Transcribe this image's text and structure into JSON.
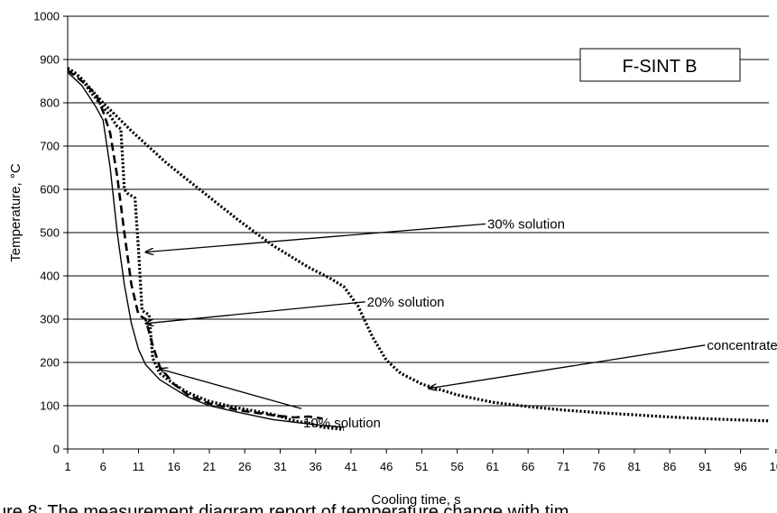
{
  "chart_data": {
    "type": "line",
    "title": "",
    "badge": "F-SINT B",
    "xlabel": "Cooling time, s",
    "ylabel": "Temperature, °C",
    "xlim": [
      1,
      100
    ],
    "ylim": [
      0,
      1000
    ],
    "x_ticks": [
      "1",
      "6",
      "11",
      "16",
      "21",
      "26",
      "31",
      "36",
      "41",
      "46",
      "51",
      "56",
      "61",
      "66",
      "71",
      "76",
      "81",
      "86",
      "91",
      "96",
      "10"
    ],
    "y_ticks": [
      "0",
      "100",
      "200",
      "300",
      "400",
      "500",
      "600",
      "700",
      "800",
      "900",
      "1000"
    ],
    "grid": "horizontal",
    "series": [
      {
        "name": "10% solution",
        "style": "solid",
        "points": [
          [
            1,
            870
          ],
          [
            3,
            840
          ],
          [
            5,
            790
          ],
          [
            6,
            760
          ],
          [
            7,
            650
          ],
          [
            8,
            500
          ],
          [
            9,
            380
          ],
          [
            10,
            290
          ],
          [
            11,
            230
          ],
          [
            12,
            195
          ],
          [
            14,
            160
          ],
          [
            16,
            140
          ],
          [
            18,
            120
          ],
          [
            21,
            100
          ],
          [
            25,
            85
          ],
          [
            30,
            68
          ],
          [
            35,
            58
          ],
          [
            40,
            50
          ]
        ]
      },
      {
        "name": "20% solution",
        "style": "dashed",
        "points": [
          [
            1,
            875
          ],
          [
            3,
            850
          ],
          [
            5,
            820
          ],
          [
            6,
            780
          ],
          [
            7,
            730
          ],
          [
            8,
            630
          ],
          [
            9,
            500
          ],
          [
            10,
            380
          ],
          [
            11,
            310
          ],
          [
            12,
            300
          ],
          [
            13,
            240
          ],
          [
            14,
            190
          ],
          [
            16,
            150
          ],
          [
            18,
            125
          ],
          [
            21,
            105
          ],
          [
            25,
            90
          ],
          [
            30,
            78
          ],
          [
            33,
            73
          ],
          [
            35,
            75
          ],
          [
            36,
            73
          ],
          [
            37,
            70
          ]
        ]
      },
      {
        "name": "30% solution",
        "style": "dotted",
        "points": [
          [
            1,
            880
          ],
          [
            2,
            870
          ],
          [
            3,
            855
          ],
          [
            4,
            830
          ],
          [
            5,
            810
          ],
          [
            6,
            790
          ],
          [
            7,
            770
          ],
          [
            8,
            745
          ],
          [
            8.5,
            740
          ],
          [
            9,
            600
          ],
          [
            9.5,
            590
          ],
          [
            10.5,
            580
          ],
          [
            11,
            460
          ],
          [
            11.5,
            320
          ],
          [
            12.5,
            310
          ],
          [
            13,
            210
          ],
          [
            14,
            175
          ],
          [
            16,
            150
          ],
          [
            18,
            130
          ],
          [
            21,
            110
          ],
          [
            25,
            95
          ],
          [
            30,
            80
          ],
          [
            33,
            65
          ],
          [
            35,
            60
          ],
          [
            37,
            50
          ],
          [
            40,
            45
          ]
        ]
      },
      {
        "name": "concentrate",
        "style": "dotted",
        "points": [
          [
            1,
            880
          ],
          [
            3,
            855
          ],
          [
            6,
            800
          ],
          [
            10,
            735
          ],
          [
            15,
            660
          ],
          [
            20,
            595
          ],
          [
            25,
            530
          ],
          [
            30,
            470
          ],
          [
            35,
            420
          ],
          [
            38,
            395
          ],
          [
            40,
            375
          ],
          [
            42,
            330
          ],
          [
            44,
            260
          ],
          [
            46,
            205
          ],
          [
            48,
            175
          ],
          [
            51,
            150
          ],
          [
            56,
            125
          ],
          [
            61,
            108
          ],
          [
            66,
            98
          ],
          [
            71,
            90
          ],
          [
            76,
            84
          ],
          [
            81,
            79
          ],
          [
            86,
            74
          ],
          [
            91,
            70
          ],
          [
            96,
            67
          ],
          [
            100,
            65
          ]
        ]
      }
    ],
    "annotations": [
      {
        "text": "30% solution",
        "target": "30% solution",
        "tx": 12,
        "ty": 455,
        "lx": 60,
        "ly": 520
      },
      {
        "text": "20% solution",
        "target": "20% solution",
        "tx": 12,
        "ty": 290,
        "lx": 43,
        "ly": 340
      },
      {
        "text": "10% solution",
        "target": "10% solution",
        "tx": 14,
        "ty": 185,
        "lx": 34,
        "ly": 60
      },
      {
        "text": "concentrate",
        "target": "concentrate",
        "tx": 52,
        "ty": 140,
        "lx": 91,
        "ly": 240
      }
    ]
  },
  "caption": "ure 8: The measurement diagram report of temperature change with tim"
}
